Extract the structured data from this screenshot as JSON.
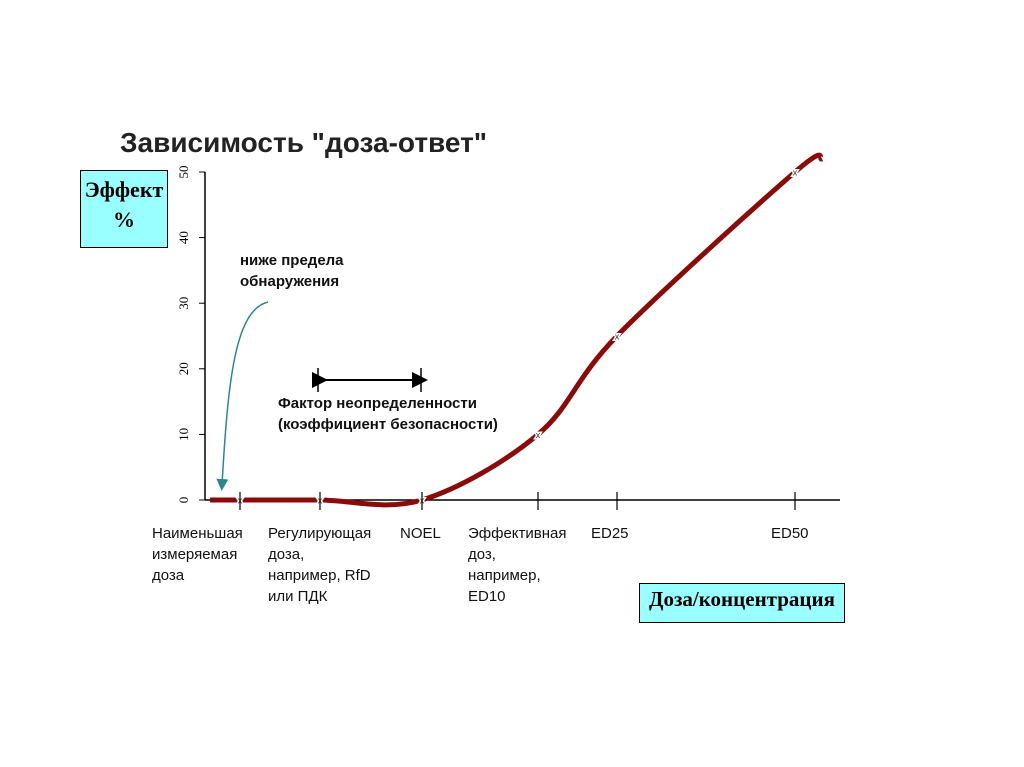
{
  "chart_data": {
    "type": "line",
    "title": "Зависимость \"доза-ответ\"",
    "y_label": "Эффект\n%",
    "x_label": "Доза/концентрация",
    "annotations": [
      "ниже предела\nобнаружения",
      "Фактор неопределенности\n(коэффициент безопасности)"
    ],
    "categories": [
      null,
      "Наименьшая\nизмеряемая\nдоза",
      "Регулирующая\nдоза,\nнапример, RfD\nили ПДК",
      "NOEL",
      "Эффективная\nдоз,\nнапример,\nED10",
      "ED25",
      "ED50",
      null
    ],
    "series": [
      {
        "color": "#8b0a0a",
        "values": [
          0,
          0,
          0,
          0,
          10,
          25,
          50,
          52
        ]
      }
    ],
    "ylim": [
      0,
      50
    ],
    "yticks": [
      0,
      10,
      20,
      30,
      40,
      50
    ]
  }
}
